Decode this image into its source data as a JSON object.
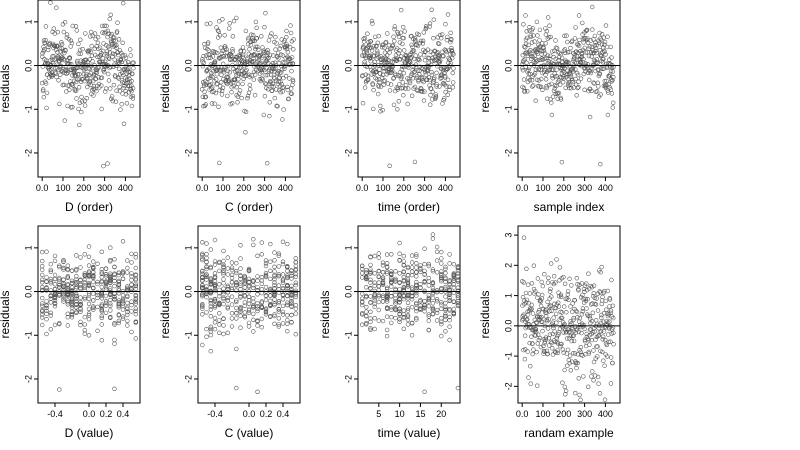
{
  "figure": {
    "rows": 2,
    "cols": 4
  },
  "colors": {
    "points": "#555555",
    "axes": "#000000",
    "background": "#ffffff"
  },
  "chart_data": [
    {
      "type": "scatter",
      "xlabel": "D (order)",
      "ylabel": "residuals",
      "xlim": [
        -20,
        470
      ],
      "ylim": [
        -2.55,
        1.5
      ],
      "xticks": [
        0,
        100,
        200,
        300,
        400
      ],
      "yticks": [
        -2,
        -1,
        0,
        1
      ],
      "hline": 0,
      "x_kind": "index",
      "n": 440,
      "seed": 11,
      "spread": 0.42,
      "structure": "order"
    },
    {
      "type": "scatter",
      "xlabel": "C (order)",
      "ylabel": "residuals",
      "xlim": [
        -20,
        470
      ],
      "ylim": [
        -2.55,
        1.5
      ],
      "xticks": [
        0,
        100,
        200,
        300,
        400
      ],
      "yticks": [
        -2,
        -1,
        0,
        1
      ],
      "hline": 0,
      "x_kind": "index",
      "n": 440,
      "seed": 23,
      "spread": 0.42,
      "structure": "flat"
    },
    {
      "type": "scatter",
      "xlabel": "time (order)",
      "ylabel": "residuals",
      "xlim": [
        -20,
        470
      ],
      "ylim": [
        -2.55,
        1.5
      ],
      "xticks": [
        0,
        100,
        200,
        300,
        400
      ],
      "yticks": [
        -2,
        -1,
        0,
        1
      ],
      "hline": 0,
      "x_kind": "index",
      "n": 440,
      "seed": 37,
      "spread": 0.42,
      "structure": "flat"
    },
    {
      "type": "scatter",
      "xlabel": "sample index",
      "ylabel": "residuals",
      "xlim": [
        -20,
        470
      ],
      "ylim": [
        -2.55,
        1.5
      ],
      "xticks": [
        0,
        100,
        200,
        300,
        400
      ],
      "yticks": [
        -2,
        -1,
        0,
        1
      ],
      "hline": 0,
      "x_kind": "index",
      "n": 440,
      "seed": 41,
      "spread": 0.42,
      "structure": "order"
    },
    {
      "type": "scatter",
      "xlabel": "D (value)",
      "ylabel": "residuals",
      "xlim": [
        -0.6,
        0.6
      ],
      "ylim": [
        -2.55,
        1.5
      ],
      "xticks": [
        -0.4,
        0.0,
        0.2,
        0.4
      ],
      "yticks": [
        -2,
        -1,
        0,
        1
      ],
      "hline": 0,
      "x_kind": "value",
      "x_values": [
        -0.55,
        -0.5,
        -0.45,
        -0.4,
        -0.35,
        -0.3,
        -0.25,
        -0.2,
        -0.15,
        -0.1,
        -0.05,
        0.0,
        0.05,
        0.1,
        0.15,
        0.2,
        0.25,
        0.3,
        0.35,
        0.4,
        0.45,
        0.5,
        0.55
      ],
      "n": 440,
      "seed": 53,
      "spread": 0.42,
      "structure": "flat"
    },
    {
      "type": "scatter",
      "xlabel": "C (value)",
      "ylabel": "residuals",
      "xlim": [
        -0.6,
        0.6
      ],
      "ylim": [
        -2.55,
        1.5
      ],
      "xticks": [
        -0.4,
        0.0,
        0.2,
        0.4
      ],
      "yticks": [
        -2,
        -1,
        0,
        1
      ],
      "hline": 0,
      "x_kind": "value",
      "x_values": [
        -0.55,
        -0.5,
        -0.45,
        -0.4,
        -0.35,
        -0.3,
        -0.25,
        -0.2,
        -0.15,
        -0.1,
        -0.05,
        0.0,
        0.05,
        0.1,
        0.15,
        0.2,
        0.25,
        0.3,
        0.35,
        0.4,
        0.45,
        0.5,
        0.55
      ],
      "n": 440,
      "seed": 67,
      "spread": 0.42,
      "structure": "flat"
    },
    {
      "type": "scatter",
      "xlabel": "time (value)",
      "ylabel": "residuals",
      "xlim": [
        0,
        24.5
      ],
      "ylim": [
        -2.55,
        1.5
      ],
      "xticks": [
        5,
        10,
        15,
        20
      ],
      "yticks": [
        -2,
        -1,
        0,
        1
      ],
      "hline": 0,
      "x_kind": "value",
      "x_values": [
        1,
        2,
        3,
        4,
        5,
        6,
        7,
        8,
        9,
        10,
        11,
        12,
        13,
        14,
        15,
        16,
        17,
        18,
        19,
        20,
        21,
        22,
        23,
        24
      ],
      "n": 440,
      "seed": 79,
      "spread": 0.42,
      "structure": "flat"
    },
    {
      "type": "scatter",
      "xlabel": "randam example",
      "ylabel": "residuals",
      "xlim": [
        -20,
        470
      ],
      "ylim": [
        -2.55,
        3.3
      ],
      "xticks": [
        0,
        100,
        200,
        300,
        400
      ],
      "yticks": [
        -2,
        -1,
        0,
        1,
        2,
        3
      ],
      "hline": 0,
      "x_kind": "index",
      "n": 440,
      "seed": 97,
      "spread": 0.95,
      "structure": "flat"
    }
  ]
}
